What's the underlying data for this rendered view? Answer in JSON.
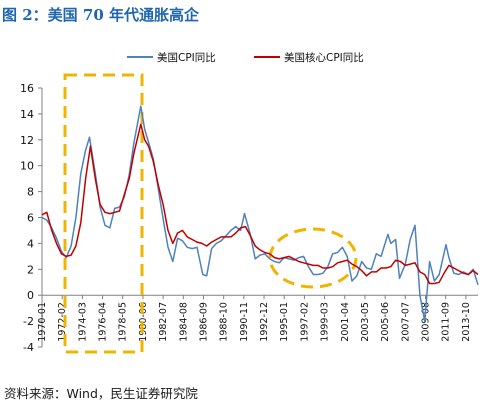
{
  "title": "图 2：美国 70 年代通胀高企",
  "source": "资料来源：Wind，民生证券研究院",
  "chart_data": {
    "type": "line",
    "title": "图 2：美国 70 年代通胀高企",
    "xlabel": "",
    "ylabel": "",
    "ylim": [
      -4,
      16
    ],
    "yticks": [
      -4,
      -2,
      0,
      2,
      4,
      6,
      8,
      10,
      12,
      14,
      16
    ],
    "xlim": [
      1970.0,
      2015.0
    ],
    "xticks": [
      "1970-01",
      "1972-02",
      "1974-03",
      "1976-04",
      "1978-05",
      "1980-06",
      "1982-07",
      "1984-08",
      "1986-09",
      "1988-10",
      "1990-11",
      "1992-12",
      "1995-01",
      "1997-02",
      "1999-03",
      "2001-04",
      "2003-05",
      "2005-06",
      "2007-07",
      "2009-08",
      "2011-09",
      "2013-10"
    ],
    "grid": false,
    "legend_position": "top",
    "series": [
      {
        "name": "美国CPI同比",
        "color": "#4f81bd",
        "x": [
          1970.0,
          1970.5,
          1971.0,
          1971.5,
          1972.0,
          1972.5,
          1973.0,
          1973.5,
          1974.0,
          1974.5,
          1974.9,
          1975.5,
          1976.0,
          1976.5,
          1977.0,
          1977.5,
          1978.0,
          1978.5,
          1979.0,
          1979.5,
          1980.2,
          1980.6,
          1981.0,
          1981.5,
          1982.0,
          1982.5,
          1983.0,
          1983.5,
          1984.0,
          1984.5,
          1985.0,
          1985.5,
          1986.0,
          1986.6,
          1987.0,
          1987.5,
          1988.0,
          1988.5,
          1989.0,
          1989.5,
          1990.0,
          1990.5,
          1990.9,
          1991.5,
          1992.0,
          1992.5,
          1993.0,
          1993.5,
          1994.0,
          1994.5,
          1995.0,
          1995.5,
          1996.0,
          1996.5,
          1997.0,
          1997.5,
          1998.0,
          1998.5,
          1999.0,
          1999.5,
          2000.0,
          2000.5,
          2001.0,
          2001.5,
          2002.0,
          2002.5,
          2003.0,
          2003.5,
          2004.0,
          2004.5,
          2005.0,
          2005.7,
          2006.0,
          2006.5,
          2006.9,
          2007.5,
          2008.0,
          2008.5,
          2009.0,
          2009.5,
          2010.0,
          2010.5,
          2011.0,
          2011.7,
          2012.0,
          2012.5,
          2013.0,
          2013.5,
          2014.0,
          2014.5,
          2015.0
        ],
        "values": [
          6.0,
          5.8,
          5.2,
          4.4,
          3.4,
          2.9,
          3.8,
          6.0,
          9.4,
          11.2,
          12.2,
          9.4,
          6.8,
          5.4,
          5.2,
          6.7,
          6.8,
          7.6,
          9.3,
          11.8,
          14.6,
          12.8,
          11.8,
          10.5,
          8.2,
          5.9,
          3.7,
          2.6,
          4.4,
          4.2,
          3.7,
          3.6,
          3.7,
          1.6,
          1.5,
          3.6,
          4.0,
          4.2,
          4.6,
          5.0,
          5.3,
          5.0,
          6.3,
          4.7,
          2.8,
          3.1,
          3.2,
          2.8,
          2.6,
          2.5,
          2.9,
          2.8,
          2.7,
          2.9,
          3.0,
          2.2,
          1.6,
          1.6,
          1.7,
          2.2,
          3.2,
          3.3,
          3.7,
          3.0,
          1.1,
          1.5,
          2.6,
          2.1,
          2.0,
          3.2,
          3.0,
          4.7,
          4.0,
          4.3,
          1.3,
          2.4,
          4.3,
          5.4,
          0.0,
          -2.0,
          2.6,
          1.1,
          1.6,
          3.9,
          2.9,
          1.7,
          1.6,
          1.8,
          1.6,
          2.0,
          0.8
        ]
      },
      {
        "name": "美国核心CPI同比",
        "color": "#c00000",
        "x": [
          1970.0,
          1970.5,
          1971.0,
          1971.5,
          1972.0,
          1972.5,
          1973.0,
          1973.5,
          1974.0,
          1974.5,
          1975.0,
          1975.5,
          1976.0,
          1976.5,
          1977.0,
          1977.5,
          1978.0,
          1978.5,
          1979.0,
          1979.5,
          1980.2,
          1980.6,
          1981.0,
          1981.5,
          1982.0,
          1982.5,
          1983.0,
          1983.5,
          1984.0,
          1984.5,
          1985.0,
          1985.5,
          1986.0,
          1986.5,
          1987.0,
          1987.5,
          1988.0,
          1988.5,
          1989.0,
          1989.5,
          1990.0,
          1990.5,
          1991.0,
          1991.5,
          1992.0,
          1992.5,
          1993.0,
          1993.5,
          1994.0,
          1994.5,
          1995.0,
          1995.5,
          1996.0,
          1996.5,
          1997.0,
          1997.5,
          1998.0,
          1998.5,
          1999.0,
          1999.5,
          2000.0,
          2000.5,
          2001.0,
          2001.5,
          2002.0,
          2002.5,
          2003.0,
          2003.5,
          2004.0,
          2004.5,
          2005.0,
          2005.5,
          2006.0,
          2006.5,
          2007.0,
          2007.5,
          2008.0,
          2008.5,
          2009.0,
          2009.5,
          2010.0,
          2010.5,
          2011.0,
          2011.5,
          2012.0,
          2012.5,
          2013.0,
          2013.5,
          2014.0,
          2014.5,
          2015.0
        ],
        "values": [
          6.2,
          6.4,
          5.0,
          4.0,
          3.2,
          3.0,
          3.1,
          3.8,
          5.6,
          9.0,
          11.5,
          9.0,
          7.0,
          6.4,
          6.3,
          6.4,
          6.5,
          7.8,
          9.0,
          11.0,
          13.2,
          12.0,
          11.5,
          10.3,
          8.5,
          7.0,
          5.0,
          4.0,
          4.8,
          5.0,
          4.5,
          4.3,
          4.1,
          4.0,
          3.8,
          4.1,
          4.3,
          4.5,
          4.5,
          4.5,
          4.8,
          5.2,
          5.3,
          4.6,
          3.8,
          3.5,
          3.3,
          3.2,
          2.9,
          2.8,
          2.9,
          3.0,
          2.8,
          2.6,
          2.5,
          2.4,
          2.3,
          2.3,
          2.1,
          2.1,
          2.2,
          2.5,
          2.6,
          2.7,
          2.4,
          2.2,
          1.9,
          1.5,
          1.8,
          1.8,
          2.1,
          2.1,
          2.2,
          2.7,
          2.6,
          2.3,
          2.4,
          2.5,
          1.8,
          1.6,
          0.9,
          0.9,
          1.0,
          1.7,
          2.3,
          2.1,
          1.9,
          1.7,
          1.6,
          1.9,
          1.6
        ]
      }
    ]
  }
}
